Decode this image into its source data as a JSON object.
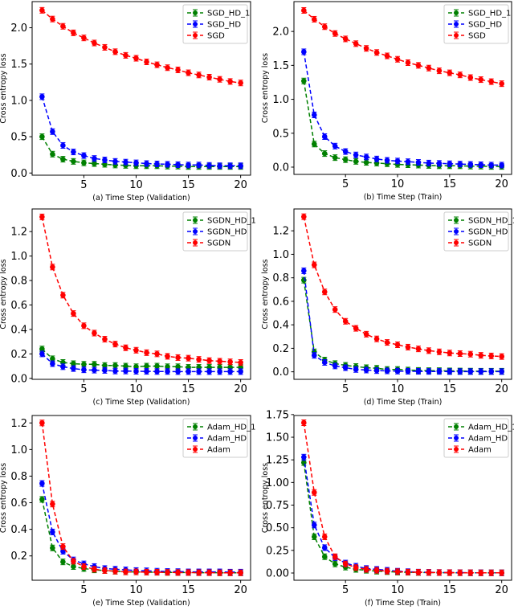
{
  "chart_data": [
    {
      "panel": "a",
      "type": "line",
      "xlabel": "(a) Time Step (Validation)",
      "ylabel": "Cross entropy loss",
      "x": [
        1,
        2,
        3,
        4,
        5,
        6,
        7,
        8,
        9,
        10,
        11,
        12,
        13,
        14,
        15,
        16,
        17,
        18,
        19,
        20
      ],
      "xlim": [
        0.05,
        20.95
      ],
      "xticks": [
        5,
        10,
        15,
        20
      ],
      "ylim": [
        -0.03,
        2.36
      ],
      "yticks": [
        0.0,
        0.5,
        1.0,
        1.5,
        2.0
      ],
      "ytick_decimals": 1,
      "legend": "top-right",
      "grid": false,
      "series": [
        {
          "name": "SGD_HD_1",
          "color": "#008000",
          "values": [
            0.5,
            0.26,
            0.19,
            0.16,
            0.14,
            0.13,
            0.12,
            0.11,
            0.105,
            0.1,
            0.1,
            0.1,
            0.095,
            0.095,
            0.09,
            0.09,
            0.09,
            0.09,
            0.09,
            0.09
          ]
        },
        {
          "name": "SGD_HD",
          "color": "#0000ff",
          "values": [
            1.05,
            0.57,
            0.38,
            0.29,
            0.24,
            0.2,
            0.18,
            0.16,
            0.15,
            0.14,
            0.13,
            0.125,
            0.12,
            0.115,
            0.11,
            0.11,
            0.105,
            0.1,
            0.1,
            0.1
          ]
        },
        {
          "name": "SGD",
          "color": "#ff0000",
          "values": [
            2.24,
            2.12,
            2.02,
            1.93,
            1.86,
            1.79,
            1.73,
            1.67,
            1.62,
            1.58,
            1.53,
            1.49,
            1.45,
            1.42,
            1.38,
            1.35,
            1.32,
            1.29,
            1.26,
            1.24
          ]
        }
      ]
    },
    {
      "panel": "b",
      "type": "line",
      "xlabel": "(b) Time Step (Train)",
      "ylabel": "Cross entropy loss",
      "x": [
        1,
        2,
        3,
        4,
        5,
        6,
        7,
        8,
        9,
        10,
        11,
        12,
        13,
        14,
        15,
        16,
        17,
        18,
        19,
        20
      ],
      "xlim": [
        0.05,
        20.95
      ],
      "xticks": [
        5,
        10,
        15,
        20
      ],
      "ylim": [
        -0.107,
        2.44
      ],
      "yticks": [
        0.0,
        0.5,
        1.0,
        1.5,
        2.0
      ],
      "ytick_decimals": 1,
      "legend": "top-right",
      "grid": false,
      "series": [
        {
          "name": "SGD_HD_1",
          "color": "#008000",
          "values": [
            1.27,
            0.34,
            0.2,
            0.14,
            0.11,
            0.085,
            0.07,
            0.06,
            0.05,
            0.04,
            0.035,
            0.03,
            0.025,
            0.02,
            0.02,
            0.02,
            0.015,
            0.015,
            0.01,
            0.01
          ]
        },
        {
          "name": "SGD_HD",
          "color": "#0000ff",
          "values": [
            1.7,
            0.77,
            0.45,
            0.31,
            0.23,
            0.18,
            0.15,
            0.12,
            0.1,
            0.09,
            0.08,
            0.07,
            0.06,
            0.055,
            0.05,
            0.045,
            0.04,
            0.035,
            0.03,
            0.03
          ]
        },
        {
          "name": "SGD",
          "color": "#ff0000",
          "values": [
            2.31,
            2.18,
            2.07,
            1.97,
            1.89,
            1.82,
            1.75,
            1.69,
            1.64,
            1.59,
            1.54,
            1.5,
            1.46,
            1.42,
            1.39,
            1.36,
            1.32,
            1.29,
            1.26,
            1.23
          ]
        }
      ]
    },
    {
      "panel": "c",
      "type": "line",
      "xlabel": "(c) Time Step (Validation)",
      "ylabel": "Cross entropy loss",
      "x": [
        1,
        2,
        3,
        4,
        5,
        6,
        7,
        8,
        9,
        10,
        11,
        12,
        13,
        14,
        15,
        16,
        17,
        18,
        19,
        20
      ],
      "xlim": [
        0.05,
        20.95
      ],
      "xticks": [
        5,
        10,
        15,
        20
      ],
      "ylim": [
        -0.008,
        1.385
      ],
      "yticks": [
        0.0,
        0.2,
        0.4,
        0.6,
        0.8,
        1.0,
        1.2
      ],
      "ytick_decimals": 1,
      "legend": "top-right",
      "grid": false,
      "series": [
        {
          "name": "SGDN_HD_1",
          "color": "#008000",
          "values": [
            0.24,
            0.16,
            0.13,
            0.12,
            0.115,
            0.115,
            0.105,
            0.105,
            0.1,
            0.095,
            0.1,
            0.1,
            0.095,
            0.095,
            0.09,
            0.09,
            0.09,
            0.09,
            0.09,
            0.09
          ]
        },
        {
          "name": "SGDN_HD",
          "color": "#0000ff",
          "values": [
            0.2,
            0.12,
            0.095,
            0.08,
            0.07,
            0.067,
            0.065,
            0.06,
            0.06,
            0.058,
            0.057,
            0.056,
            0.056,
            0.055,
            0.055,
            0.055,
            0.055,
            0.055,
            0.055,
            0.055
          ]
        },
        {
          "name": "SGDN",
          "color": "#ff0000",
          "values": [
            1.32,
            0.91,
            0.68,
            0.53,
            0.43,
            0.37,
            0.32,
            0.28,
            0.25,
            0.23,
            0.21,
            0.2,
            0.18,
            0.17,
            0.165,
            0.155,
            0.145,
            0.14,
            0.135,
            0.13
          ]
        }
      ]
    },
    {
      "panel": "d",
      "type": "line",
      "xlabel": "(d) Time Step (Train)",
      "ylabel": "Cross entropy loss",
      "x": [
        1,
        2,
        3,
        4,
        5,
        6,
        7,
        8,
        9,
        10,
        11,
        12,
        13,
        14,
        15,
        16,
        17,
        18,
        19,
        20
      ],
      "xlim": [
        0.05,
        20.95
      ],
      "xticks": [
        5,
        10,
        15,
        20
      ],
      "ylim": [
        -0.064,
        1.386
      ],
      "yticks": [
        0.0,
        0.2,
        0.4,
        0.6,
        0.8,
        1.0,
        1.2
      ],
      "ytick_decimals": 1,
      "legend": "top-right",
      "grid": false,
      "series": [
        {
          "name": "SGDN_HD_1",
          "color": "#008000",
          "values": [
            0.78,
            0.17,
            0.1,
            0.07,
            0.055,
            0.045,
            0.035,
            0.03,
            0.02,
            0.02,
            0.015,
            0.012,
            0.01,
            0.01,
            0.008,
            0.007,
            0.006,
            0.005,
            0.005,
            0.005
          ]
        },
        {
          "name": "SGDN_HD",
          "color": "#0000ff",
          "values": [
            0.86,
            0.14,
            0.08,
            0.05,
            0.035,
            0.02,
            0.015,
            0.01,
            0.008,
            0.006,
            0.005,
            0.004,
            0.003,
            0.003,
            0.002,
            0.002,
            0.002,
            0.002,
            0.002,
            0.002
          ]
        },
        {
          "name": "SGDN",
          "color": "#ff0000",
          "values": [
            1.32,
            0.91,
            0.68,
            0.53,
            0.43,
            0.37,
            0.32,
            0.28,
            0.25,
            0.23,
            0.21,
            0.195,
            0.18,
            0.17,
            0.16,
            0.155,
            0.15,
            0.14,
            0.135,
            0.13
          ]
        }
      ]
    },
    {
      "panel": "e",
      "type": "line",
      "xlabel": "(e) Time Step (Validation)",
      "ylabel": "Cross entropy loss",
      "x": [
        1,
        2,
        3,
        4,
        5,
        6,
        7,
        8,
        9,
        10,
        11,
        12,
        13,
        14,
        15,
        16,
        17,
        18,
        19,
        20
      ],
      "xlim": [
        0.05,
        20.95
      ],
      "xticks": [
        5,
        10,
        15,
        20
      ],
      "ylim": [
        0.017,
        1.256
      ],
      "yticks": [
        0.2,
        0.4,
        0.6,
        0.8,
        1.0,
        1.2
      ],
      "ytick_decimals": 1,
      "legend": "top-right",
      "grid": false,
      "series": [
        {
          "name": "Adam_HD_1",
          "color": "#008000",
          "values": [
            0.625,
            0.26,
            0.155,
            0.12,
            0.105,
            0.095,
            0.09,
            0.085,
            0.08,
            0.08,
            0.078,
            0.077,
            0.076,
            0.075,
            0.075,
            0.074,
            0.074,
            0.073,
            0.073,
            0.073
          ]
        },
        {
          "name": "Adam_HD",
          "color": "#0000ff",
          "values": [
            0.745,
            0.38,
            0.235,
            0.17,
            0.14,
            0.12,
            0.105,
            0.1,
            0.095,
            0.09,
            0.088,
            0.085,
            0.083,
            0.082,
            0.08,
            0.08,
            0.08,
            0.08,
            0.078,
            0.078
          ]
        },
        {
          "name": "Adam",
          "color": "#ff0000",
          "values": [
            1.2,
            0.59,
            0.27,
            0.16,
            0.12,
            0.1,
            0.09,
            0.085,
            0.08,
            0.08,
            0.078,
            0.077,
            0.076,
            0.075,
            0.075,
            0.074,
            0.074,
            0.073,
            0.073,
            0.073
          ]
        }
      ]
    },
    {
      "panel": "f",
      "type": "line",
      "xlabel": "(f) Time Step (Train)",
      "ylabel": "Cross entropy loss",
      "x": [
        1,
        2,
        3,
        4,
        5,
        6,
        7,
        8,
        9,
        10,
        11,
        12,
        13,
        14,
        15,
        16,
        17,
        18,
        19,
        20
      ],
      "xlim": [
        0.05,
        20.95
      ],
      "xticks": [
        5,
        10,
        15,
        20
      ],
      "ylim": [
        -0.08,
        1.74
      ],
      "yticks": [
        0.0,
        0.25,
        0.5,
        0.75,
        1.0,
        1.25,
        1.5,
        1.75
      ],
      "ytick_decimals": 2,
      "legend": "top-right",
      "grid": false,
      "series": [
        {
          "name": "Adam_HD_1",
          "color": "#008000",
          "values": [
            1.22,
            0.4,
            0.18,
            0.1,
            0.065,
            0.04,
            0.03,
            0.02,
            0.015,
            0.01,
            0.008,
            0.006,
            0.005,
            0.004,
            0.003,
            0.003,
            0.002,
            0.002,
            0.002,
            0.002
          ]
        },
        {
          "name": "Adam_HD",
          "color": "#0000ff",
          "values": [
            1.28,
            0.53,
            0.28,
            0.17,
            0.11,
            0.075,
            0.05,
            0.04,
            0.03,
            0.02,
            0.015,
            0.01,
            0.008,
            0.006,
            0.005,
            0.004,
            0.003,
            0.003,
            0.002,
            0.002
          ]
        },
        {
          "name": "Adam",
          "color": "#ff0000",
          "values": [
            1.66,
            0.89,
            0.4,
            0.18,
            0.1,
            0.06,
            0.04,
            0.03,
            0.02,
            0.015,
            0.01,
            0.008,
            0.006,
            0.005,
            0.004,
            0.003,
            0.003,
            0.002,
            0.002,
            0.002
          ]
        }
      ]
    }
  ]
}
